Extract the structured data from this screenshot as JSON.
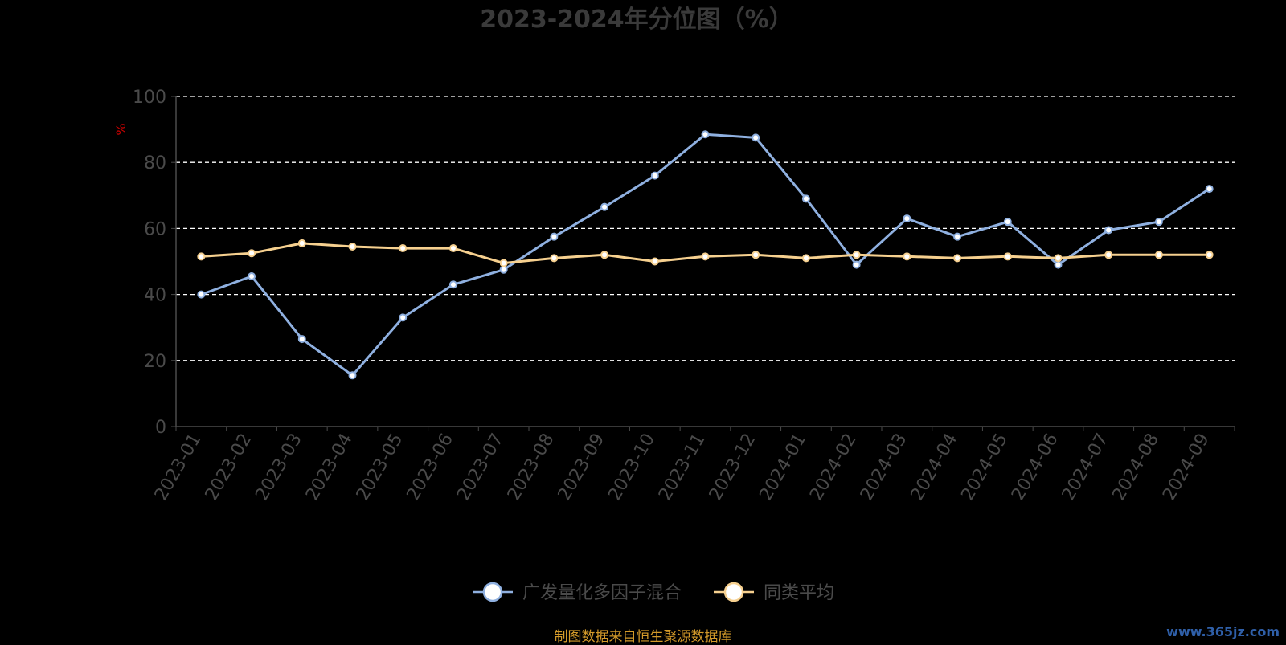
{
  "chart_data": {
    "type": "line",
    "title": "2023-2024年分位图（%）",
    "ylabel": "%",
    "xlabel": "",
    "ylim": [
      0,
      100
    ],
    "yticks": [
      0,
      20,
      40,
      60,
      80,
      100
    ],
    "grid": true,
    "legend_position": "bottom-center",
    "categories": [
      "2023-01",
      "2023-02",
      "2023-03",
      "2023-04",
      "2023-05",
      "2023-06",
      "2023-07",
      "2023-08",
      "2023-09",
      "2023-10",
      "2023-11",
      "2023-12",
      "2024-01",
      "2024-02",
      "2024-03",
      "2024-04",
      "2024-05",
      "2024-06",
      "2024-07",
      "2024-08",
      "2024-09"
    ],
    "series": [
      {
        "name": "广发量化多因子混合",
        "color": "#8fb0e0",
        "values": [
          40,
          45.5,
          26.5,
          15.5,
          33,
          43,
          47.5,
          57.5,
          66.5,
          76,
          88.5,
          87.5,
          69,
          49,
          63,
          57.5,
          62,
          49,
          59.5,
          62,
          72
        ]
      },
      {
        "name": "同类平均",
        "color": "#f6d08f",
        "values": [
          51.5,
          52.5,
          55.5,
          54.5,
          54,
          54,
          49.5,
          51,
          52,
          50,
          51.5,
          52,
          51,
          52,
          51.5,
          51,
          51.5,
          51,
          52,
          52,
          52
        ]
      }
    ]
  },
  "footer": {
    "source": "制图数据来自恒生聚源数据库",
    "watermark": "www.365jz.com"
  },
  "colors": {
    "title": "#3a3a3a",
    "axis_text": "#4a4a4a",
    "ylabel": "#cc0000",
    "grid": "#ffffff",
    "source": "#d49a2a"
  }
}
